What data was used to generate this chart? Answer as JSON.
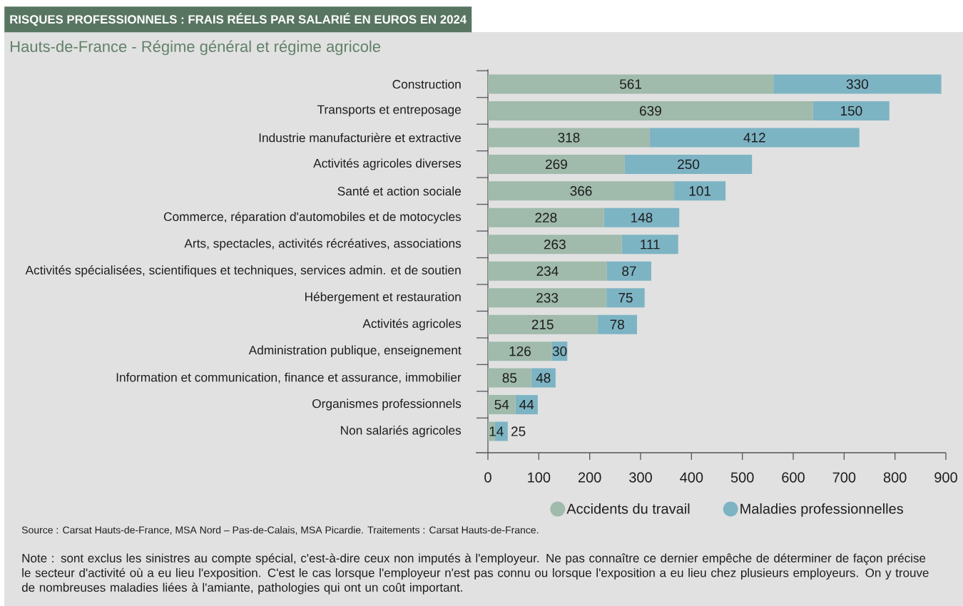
{
  "chart_data": {
    "type": "bar",
    "orientation": "horizontal",
    "stacked": true,
    "title": "RISQUES PROFESSIONNELS : FRAIS RÉELS PAR SALARIÉ EN EUROS EN 2024",
    "subtitle": "Hauts-de-France - Régime général et régime agricole",
    "categories": [
      "Construction",
      "Transports et entreposage",
      "Industrie manufacturière et extractive",
      "Activités agricoles diverses",
      "Santé et action sociale",
      "Commerce, réparation d'automobiles et de motocycles",
      "Arts, spectacles, activités récréatives, associations",
      "Activités spécialisées, scientifiques et techniques, services admin. et de soutien",
      "Hébergement et restauration",
      "Activités agricoles",
      "Administration publique, enseignement",
      "Information et communication, finance et assurance, immobilier",
      "Organismes professionnels",
      "Non salariés agricoles"
    ],
    "series": [
      {
        "name": "Accidents du travail",
        "color": "#a0baab",
        "values": [
          561,
          639,
          318,
          269,
          366,
          228,
          263,
          234,
          233,
          215,
          126,
          85,
          54,
          14
        ]
      },
      {
        "name": "Maladies professionnelles",
        "color": "#7db4c4",
        "values": [
          330,
          150,
          412,
          250,
          101,
          148,
          111,
          87,
          75,
          78,
          30,
          48,
          44,
          25
        ]
      }
    ],
    "xlim": [
      0,
      900
    ],
    "xticks": [
      0,
      100,
      200,
      300,
      400,
      500,
      600,
      700,
      800,
      900
    ],
    "data_labels": true,
    "legend": "bottom",
    "annotations": [
      "Source : Carsat Hauts-de-France, MSA Nord – Pas-de-Calais, MSA Picardie. Traitements : Carsat Hauts-de-France.",
      "Note : sont exclus les sinistres au compte spécial, c'est-à-dire ceux non imputés à l'employeur. Ne pas connaître ce dernier empêche de déterminer de façon précise le secteur d'activité où a eu lieu l'exposition. C'est le cas lorsque l'employeur n'est pas connu ou lorsque l'exposition a eu lieu chez plusieurs employeurs. On y trouve de nombreuses maladies liées à l'amiante, pathologies qui ont un coût important."
    ]
  }
}
